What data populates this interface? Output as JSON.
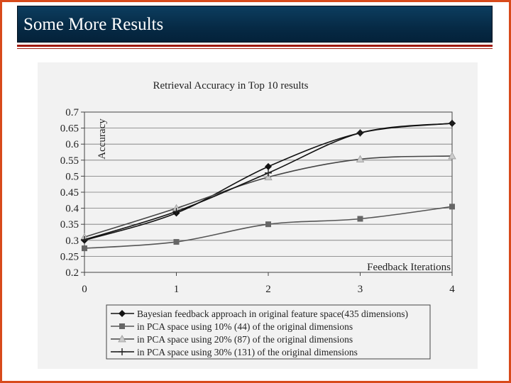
{
  "slide": {
    "title": "Some More Results"
  },
  "colors": {
    "frame_border": "#d84a1b",
    "title_bar": "#062a45",
    "rule": "#a01a0e"
  },
  "chart_data": {
    "type": "line",
    "title": "Retrieval Accuracy in Top 10 results",
    "xlabel": "Feedback Iterations",
    "ylabel": "Accuracy",
    "x": [
      0,
      1,
      2,
      3,
      4
    ],
    "xlim": [
      0,
      4
    ],
    "ylim": [
      0.2,
      0.7
    ],
    "yticks": [
      "0.7",
      "0.65",
      "0.6",
      "0.55",
      "0.5",
      "0.45",
      "0.4",
      "0.35",
      "0.3",
      "0.25",
      "0.2"
    ],
    "xticks": [
      "0",
      "1",
      "2",
      "3",
      "4"
    ],
    "grid": "horizontal",
    "legend_position": "bottom",
    "series": [
      {
        "name": "Bayesian feedback approach in original feature space(435 dimensions)",
        "values": [
          0.3,
          0.385,
          0.53,
          0.635,
          0.665
        ],
        "marker": "diamond"
      },
      {
        "name": "in PCA space using 10% (44) of the original dimensions",
        "values": [
          0.275,
          0.295,
          0.35,
          0.367,
          0.405
        ],
        "marker": "square"
      },
      {
        "name": "in PCA space using 20% (87) of the original dimensions",
        "values": [
          0.31,
          0.4,
          0.497,
          0.553,
          0.563
        ],
        "marker": "triangle"
      },
      {
        "name": "in PCA space using 30% (131) of the original dimensions",
        "values": [
          0.302,
          0.39,
          0.51,
          0.635,
          0.665
        ],
        "marker": "cross"
      }
    ]
  }
}
